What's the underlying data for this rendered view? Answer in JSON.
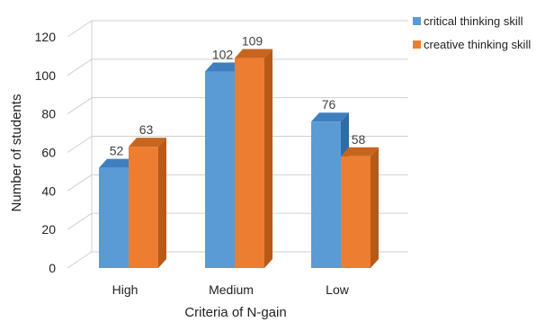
{
  "chart_data": {
    "type": "bar",
    "title": "",
    "xlabel": "Criteria  of N-gain",
    "ylabel": "Number of students",
    "categories": [
      "High",
      "Medium",
      "Low"
    ],
    "ylim": [
      0,
      120
    ],
    "yticks": [
      "0",
      "20",
      "40",
      "60",
      "80",
      "100",
      "120"
    ],
    "grid": true,
    "legend_position": "top-right",
    "series": [
      {
        "name": "critical thinking skill",
        "values": [
          52,
          102,
          76
        ],
        "color": "#5b9bd5",
        "side_color": "#2e6da4",
        "top_color": "#3f7fbf"
      },
      {
        "name": "creative thinking skill",
        "values": [
          63,
          109,
          58
        ],
        "color": "#ed7d31",
        "side_color": "#b85a17",
        "top_color": "#c7651f"
      }
    ],
    "data_labels": [
      [
        "52",
        "102",
        "76"
      ],
      [
        "63",
        "109",
        "58"
      ]
    ]
  }
}
